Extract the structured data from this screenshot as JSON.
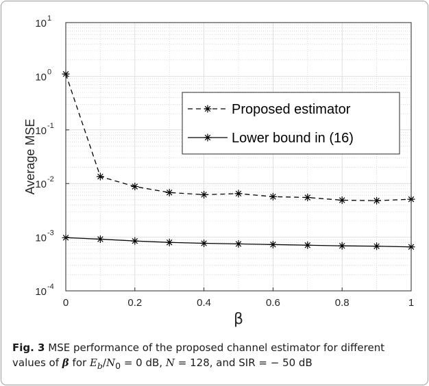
{
  "chart_data": {
    "type": "line",
    "xlabel": "β",
    "ylabel": "Average MSE",
    "xlim": [
      0,
      1
    ],
    "ylim": [
      0.0001,
      10
    ],
    "yscale": "log",
    "x_ticks": [
      "0",
      "0.2",
      "0.4",
      "0.6",
      "0.8",
      "1"
    ],
    "y_ticks": [
      {
        "base": "10",
        "exp": "-4"
      },
      {
        "base": "10",
        "exp": "-3"
      },
      {
        "base": "10",
        "exp": "-2"
      },
      {
        "base": "10",
        "exp": "-1"
      },
      {
        "base": "10",
        "exp": "0"
      },
      {
        "base": "10",
        "exp": "1"
      }
    ],
    "grid": true,
    "legend_position": "top-right",
    "x": [
      0,
      0.1,
      0.2,
      0.3,
      0.4,
      0.5,
      0.6,
      0.7,
      0.8,
      0.9,
      1.0
    ],
    "series": [
      {
        "name": "Proposed estimator",
        "line_style": "dashed",
        "marker": "asterisk",
        "color": "#000000",
        "values": [
          1.1,
          0.0135,
          0.0088,
          0.0068,
          0.0062,
          0.0065,
          0.0057,
          0.0055,
          0.0049,
          0.0048,
          0.0051
        ]
      },
      {
        "name": "Lower bound in (16)",
        "line_style": "solid",
        "marker": "asterisk",
        "color": "#000000",
        "values": [
          0.00098,
          0.00092,
          0.00085,
          0.0008,
          0.00077,
          0.00075,
          0.00073,
          0.00071,
          0.00069,
          0.00068,
          0.00066
        ]
      }
    ]
  },
  "caption": {
    "label": "Fig. 3",
    "text1": "MSE performance of the proposed channel estimator for different values of",
    "beta": "β",
    "text2": "for",
    "ebn0_lhs_E": "E",
    "ebn0_lhs_b": "b",
    "ebn0_lhs_N": "N",
    "ebn0_lhs_0": "0",
    "ebn0_rhs": "= 0 dB,",
    "n_var": "N",
    "n_rhs": "= 128, and SIR = − 50 dB"
  }
}
